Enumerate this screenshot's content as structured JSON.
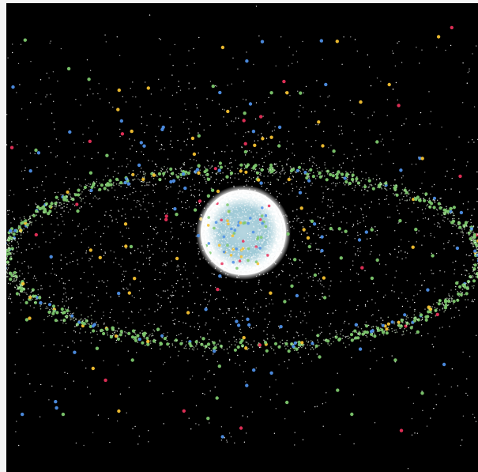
{
  "image": {
    "kind": "space-debris-visualization",
    "background_color": "#000000",
    "frame_color": "#f4f4f4"
  },
  "colors": {
    "debris": "#ffffff",
    "planet_glow": "#ffffff",
    "planet_tint": "#9ec9d6",
    "green": "#7dc86e",
    "blue": "#4e8fe6",
    "red": "#e8305a",
    "yellow": "#f5c232"
  },
  "objects": {
    "planet": "earth",
    "ring": "geostationary-belt",
    "cloud": "orbital-debris-field"
  }
}
